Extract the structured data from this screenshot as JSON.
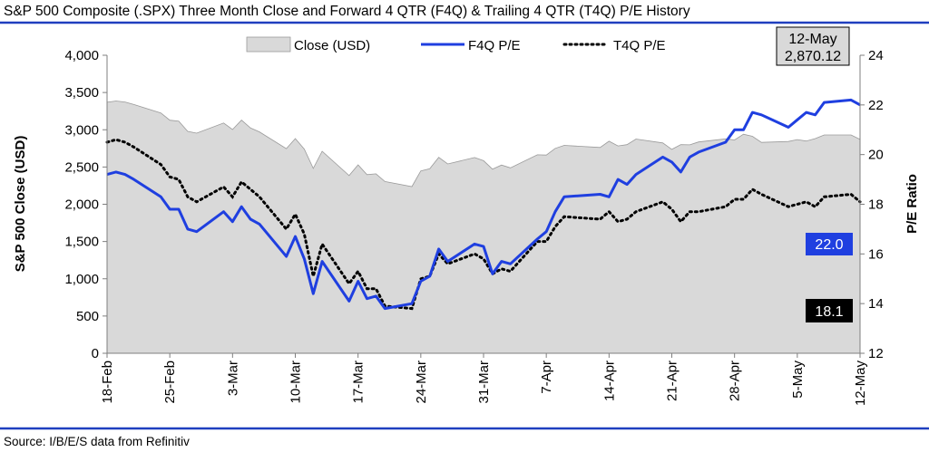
{
  "title": "S&P 500 Composite (.SPX) Three Month Close and Forward 4 QTR (F4Q) & Trailing 4 QTR (T4Q) P/E History",
  "source": "Source: I/B/E/S data from Refinitiv",
  "colors": {
    "rule": "#1f3fbf",
    "area_fill": "#d9d9d9",
    "area_stroke": "#9a9a9a",
    "f4q": "#1f3fe0",
    "t4q": "#000000",
    "f4q_box": "#1f3fe0",
    "t4q_box": "#000000",
    "date_box": "#d9d9d9"
  },
  "annotations": {
    "date_label": "12-May",
    "close_label": "2,870.12",
    "f4q_label": "22.0",
    "t4q_label": "18.1"
  },
  "chart_data": {
    "type": "line",
    "title": "S&P 500 Composite (.SPX) Three Month Close and Forward 4 QTR (F4Q) & Trailing 4 QTR (T4Q) P/E History",
    "ylabel": "S&P 500 Close (USD)",
    "y2label": "P/E Ratio",
    "ylim": [
      0,
      4000
    ],
    "y_ticks": [
      "0",
      "500",
      "1,000",
      "1,500",
      "2,000",
      "2,500",
      "3,000",
      "3,500",
      "4,000"
    ],
    "y_tick_values": [
      0,
      500,
      1000,
      1500,
      2000,
      2500,
      3000,
      3500,
      4000
    ],
    "y2lim": [
      12,
      24
    ],
    "y2_ticks": [
      "12",
      "14",
      "16",
      "18",
      "20",
      "22",
      "24"
    ],
    "y2_tick_values": [
      12,
      14,
      16,
      18,
      20,
      22,
      24
    ],
    "x_ticks": [
      "18-Feb",
      "25-Feb",
      "3-Mar",
      "10-Mar",
      "17-Mar",
      "24-Mar",
      "31-Mar",
      "7-Apr",
      "14-Apr",
      "21-Apr",
      "28-Apr",
      "5-May",
      "12-May"
    ],
    "grid": false,
    "legend": "top-center",
    "x": [
      "2020-02-18",
      "2020-02-19",
      "2020-02-20",
      "2020-02-21",
      "2020-02-24",
      "2020-02-25",
      "2020-02-26",
      "2020-02-27",
      "2020-02-28",
      "2020-03-02",
      "2020-03-03",
      "2020-03-04",
      "2020-03-05",
      "2020-03-06",
      "2020-03-09",
      "2020-03-10",
      "2020-03-11",
      "2020-03-12",
      "2020-03-13",
      "2020-03-16",
      "2020-03-17",
      "2020-03-18",
      "2020-03-19",
      "2020-03-20",
      "2020-03-23",
      "2020-03-24",
      "2020-03-25",
      "2020-03-26",
      "2020-03-27",
      "2020-03-30",
      "2020-03-31",
      "2020-04-01",
      "2020-04-02",
      "2020-04-03",
      "2020-04-06",
      "2020-04-07",
      "2020-04-08",
      "2020-04-09",
      "2020-04-13",
      "2020-04-14",
      "2020-04-15",
      "2020-04-16",
      "2020-04-17",
      "2020-04-20",
      "2020-04-21",
      "2020-04-22",
      "2020-04-23",
      "2020-04-24",
      "2020-04-27",
      "2020-04-28",
      "2020-04-29",
      "2020-04-30",
      "2020-05-01",
      "2020-05-04",
      "2020-05-05",
      "2020-05-06",
      "2020-05-07",
      "2020-05-08",
      "2020-05-11",
      "2020-05-12"
    ],
    "series": [
      {
        "name": "Close (USD)",
        "type": "area",
        "axis": "left",
        "values": [
          3370,
          3386,
          3373,
          3338,
          3226,
          3128,
          3116,
          2979,
          2954,
          3090,
          3003,
          3130,
          3024,
          2972,
          2747,
          2882,
          2741,
          2481,
          2711,
          2386,
          2529,
          2398,
          2409,
          2305,
          2237,
          2447,
          2476,
          2630,
          2541,
          2627,
          2585,
          2471,
          2527,
          2489,
          2664,
          2660,
          2750,
          2790,
          2762,
          2846,
          2783,
          2800,
          2875,
          2823,
          2737,
          2800,
          2798,
          2837,
          2878,
          2863,
          2940,
          2912,
          2831,
          2843,
          2868,
          2849,
          2882,
          2930,
          2930,
          2870
        ]
      },
      {
        "name": "F4Q P/E",
        "type": "line",
        "axis": "right",
        "values": [
          19.2,
          19.3,
          19.2,
          19.0,
          18.3,
          17.8,
          17.8,
          17.0,
          16.9,
          17.7,
          17.3,
          17.9,
          17.4,
          17.2,
          15.9,
          16.7,
          15.8,
          14.4,
          15.7,
          14.1,
          14.9,
          14.2,
          14.3,
          13.8,
          14.0,
          14.9,
          15.1,
          16.2,
          15.7,
          16.4,
          16.3,
          15.2,
          15.7,
          15.6,
          16.6,
          16.9,
          17.7,
          18.3,
          18.4,
          18.3,
          19.0,
          18.8,
          19.2,
          19.9,
          19.7,
          19.3,
          19.9,
          20.1,
          20.5,
          21.0,
          21.0,
          21.7,
          21.6,
          21.1,
          21.4,
          21.7,
          21.6,
          22.1,
          22.2,
          22.0
        ]
      },
      {
        "name": "T4Q P/E",
        "type": "line",
        "axis": "right",
        "values": [
          20.5,
          20.6,
          20.5,
          20.3,
          19.6,
          19.1,
          19.0,
          18.3,
          18.1,
          18.7,
          18.3,
          18.9,
          18.6,
          18.3,
          17.0,
          17.6,
          16.8,
          15.1,
          16.4,
          14.8,
          15.3,
          14.6,
          14.6,
          13.9,
          13.8,
          15.0,
          15.1,
          16.0,
          15.6,
          16.0,
          15.8,
          15.2,
          15.4,
          15.3,
          16.5,
          16.5,
          17.1,
          17.5,
          17.4,
          17.7,
          17.3,
          17.4,
          17.7,
          18.1,
          17.8,
          17.3,
          17.7,
          17.7,
          17.9,
          18.2,
          18.2,
          18.6,
          18.4,
          17.9,
          18.0,
          18.1,
          17.9,
          18.3,
          18.4,
          18.1
        ]
      }
    ]
  }
}
